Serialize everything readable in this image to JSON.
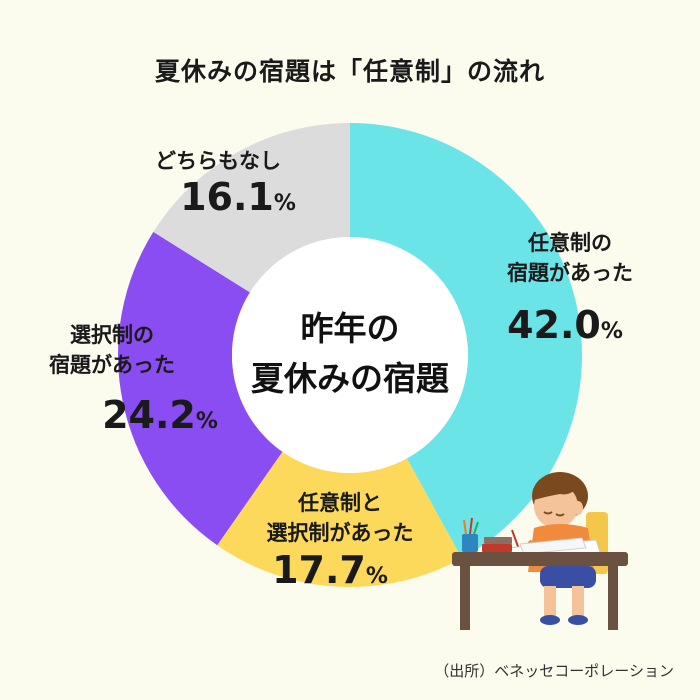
{
  "title": "夏休みの宿題は「任意制」の流れ",
  "source": "（出所）ベネッセコーポレーション",
  "chart_data": {
    "type": "pie",
    "variant": "donut",
    "title": "夏休みの宿題は「任意制」の流れ",
    "center_label": [
      "昨年の",
      "夏休みの宿題"
    ],
    "percent_sign": "%",
    "slices": [
      {
        "label_lines": [
          "任意制の",
          "宿題があった"
        ],
        "value": 42.0,
        "value_text": "42.0",
        "color": "#6be4e8"
      },
      {
        "label_lines": [
          "任意制と",
          "選択制があった"
        ],
        "value": 17.7,
        "value_text": "17.7",
        "color": "#fcd95a"
      },
      {
        "label_lines": [
          "選択制の",
          "宿題があった"
        ],
        "value": 24.2,
        "value_text": "24.2",
        "color": "#8a4df2"
      },
      {
        "label_lines": [
          "どちらもなし"
        ],
        "value": 16.1,
        "value_text": "16.1",
        "color": "#dcdcdc"
      }
    ]
  },
  "illustration": {
    "name": "boy-studying-at-desk",
    "colors": {
      "hair": "#7a4a1e",
      "skin": "#f4c39a",
      "shirt": "#f08a3c",
      "shorts": "#3a4fa3",
      "desk": "#6b5240",
      "lamp_yellow": "#f4c64a"
    }
  }
}
